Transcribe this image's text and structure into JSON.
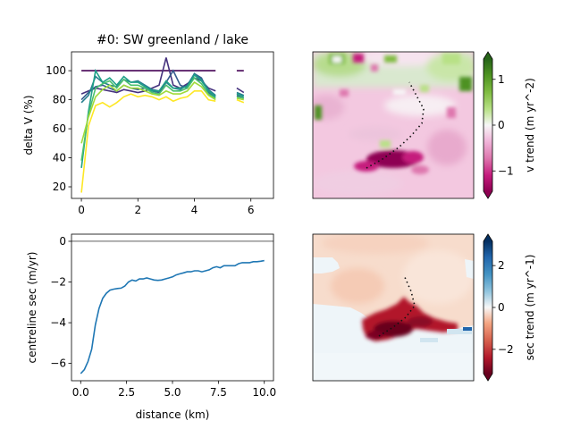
{
  "chart_data": [
    {
      "type": "line",
      "title": "#0: SW greenland / lake",
      "ylabel": "delta V (%)",
      "xlabel": "",
      "xlim": [
        -0.35,
        6.8
      ],
      "ylim": [
        12,
        113
      ],
      "xticks": [
        0,
        2,
        4,
        6
      ],
      "yticks": [
        20,
        40,
        60,
        80,
        100
      ],
      "grid": false,
      "x": [
        0,
        0.25,
        0.5,
        0.75,
        1.0,
        1.25,
        1.5,
        1.75,
        2.0,
        2.25,
        2.5,
        2.75,
        3.0,
        3.25,
        3.5,
        3.75,
        4.0,
        4.25,
        4.5,
        4.75,
        5.0,
        5.25,
        5.5,
        5.75
      ],
      "series": [
        {
          "color": "#440154",
          "values": [
            100,
            100,
            100,
            100,
            100,
            100,
            100,
            100,
            100,
            100,
            100,
            100,
            100,
            100,
            100,
            100,
            100,
            100,
            100,
            100,
            null,
            null,
            100,
            100
          ]
        },
        {
          "color": "#46327e",
          "values": [
            84,
            86,
            88,
            87,
            86,
            85,
            87,
            86,
            85,
            86,
            88,
            90,
            109,
            90,
            88,
            91,
            95,
            93,
            88,
            86,
            null,
            null,
            88,
            85
          ]
        },
        {
          "color": "#365c8d",
          "values": [
            80,
            85,
            89,
            90,
            88,
            86,
            90,
            88,
            87,
            88,
            86,
            85,
            92,
            100,
            90,
            88,
            98,
            95,
            85,
            82,
            null,
            null,
            83,
            81
          ]
        },
        {
          "color": "#277f8e",
          "values": [
            78,
            83,
            96,
            92,
            90,
            89,
            94,
            92,
            93,
            90,
            87,
            86,
            92,
            88,
            87,
            90,
            98,
            94,
            87,
            83,
            null,
            null,
            85,
            83
          ]
        },
        {
          "color": "#1fa187",
          "values": [
            33,
            72,
            100,
            92,
            95,
            90,
            96,
            92,
            92,
            89,
            86,
            86,
            93,
            88,
            88,
            89,
            97,
            93,
            86,
            82,
            null,
            null,
            84,
            82
          ]
        },
        {
          "color": "#4ac16d",
          "values": [
            38,
            70,
            88,
            91,
            93,
            88,
            94,
            90,
            90,
            88,
            85,
            84,
            90,
            86,
            86,
            88,
            95,
            91,
            84,
            81,
            null,
            null,
            82,
            81
          ]
        },
        {
          "color": "#a0da39",
          "values": [
            50,
            68,
            82,
            87,
            90,
            86,
            90,
            88,
            88,
            86,
            84,
            83,
            86,
            84,
            84,
            86,
            92,
            89,
            83,
            80,
            null,
            null,
            81,
            80
          ]
        },
        {
          "color": "#fde725",
          "values": [
            16,
            62,
            76,
            78,
            75,
            78,
            82,
            84,
            82,
            83,
            82,
            80,
            82,
            79,
            81,
            82,
            86,
            86,
            80,
            79,
            null,
            null,
            80,
            78
          ]
        }
      ]
    },
    {
      "type": "heatmap",
      "colormap": "PiYG",
      "colorbar_label": "v trend (m yr^-2)",
      "colorbar_ticks": [
        "1",
        "0",
        "−1"
      ],
      "clim": [
        -1.6,
        1.6
      ]
    },
    {
      "type": "line",
      "xlabel": "distance (km)",
      "ylabel": "centreline sec (m/yr)",
      "xlim": [
        -0.5,
        10.5
      ],
      "ylim": [
        -6.85,
        0.35
      ],
      "xticks": [
        "0.0",
        "2.5",
        "5.0",
        "7.5",
        "10.0"
      ],
      "yticks": [
        "0",
        "−2",
        "−4",
        "−6"
      ],
      "reference_line": 0,
      "series": [
        {
          "color": "#1f77b4",
          "x": [
            0,
            0.2,
            0.4,
            0.6,
            0.8,
            1.0,
            1.2,
            1.4,
            1.6,
            1.8,
            2.0,
            2.2,
            2.4,
            2.6,
            2.8,
            3.0,
            3.2,
            3.4,
            3.6,
            3.8,
            4.0,
            4.2,
            4.4,
            4.6,
            4.8,
            5.0,
            5.2,
            5.4,
            5.6,
            5.8,
            6.0,
            6.2,
            6.4,
            6.6,
            6.8,
            7.0,
            7.2,
            7.4,
            7.6,
            7.8,
            8.0,
            8.2,
            8.4,
            8.6,
            8.8,
            9.0,
            9.2,
            9.4,
            9.6,
            9.8,
            10.0
          ],
          "values": [
            -6.5,
            -6.3,
            -5.9,
            -5.3,
            -4.1,
            -3.3,
            -2.8,
            -2.55,
            -2.4,
            -2.35,
            -2.32,
            -2.3,
            -2.2,
            -2.0,
            -1.9,
            -1.95,
            -1.85,
            -1.85,
            -1.8,
            -1.85,
            -1.9,
            -1.92,
            -1.9,
            -1.85,
            -1.8,
            -1.75,
            -1.65,
            -1.6,
            -1.55,
            -1.5,
            -1.5,
            -1.45,
            -1.45,
            -1.5,
            -1.45,
            -1.4,
            -1.3,
            -1.25,
            -1.3,
            -1.2,
            -1.2,
            -1.2,
            -1.2,
            -1.1,
            -1.05,
            -1.05,
            -1.05,
            -1.0,
            -1.0,
            -0.98,
            -0.95
          ]
        }
      ]
    },
    {
      "type": "heatmap",
      "colormap": "RdBu",
      "colorbar_label": "sec trend (m yr^-1)",
      "colorbar_ticks": [
        "2",
        "0",
        "−2"
      ],
      "clim": [
        -3.5,
        3.5
      ]
    }
  ]
}
